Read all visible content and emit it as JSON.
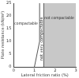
{
  "chart_data": {
    "type": "scatter",
    "x_label": "Lateral friction ratio (%)",
    "y_label": "Plate resistance (kN/m²)",
    "xlim": [
      0,
      3
    ],
    "xticks": [
      0,
      1,
      2,
      3
    ],
    "ylim": [
      0,
      25
    ],
    "yticks": [
      0,
      5,
      10,
      15,
      20,
      25
    ],
    "grid": false,
    "series": [
      {
        "type": "area",
        "color": "#c8c8c8",
        "x": [
          1.45,
          3
        ],
        "values": [
          25,
          25
        ]
      },
      {
        "type": "line",
        "color": "#555555",
        "x": [
          1.0,
          1.25,
          1.25
        ],
        "values": [
          0,
          10,
          25
        ]
      },
      {
        "type": "line",
        "color": "#555555",
        "x": [
          1.45,
          1.45
        ],
        "values": [
          0,
          25
        ]
      }
    ],
    "annotations": [
      {
        "text": "compactable",
        "x": 0.6,
        "y": 17
      },
      {
        "text": "not compactable",
        "x": 2.2,
        "y": 19
      },
      {
        "text": "not very compactable",
        "x": 1.35,
        "y": 11
      }
    ]
  }
}
